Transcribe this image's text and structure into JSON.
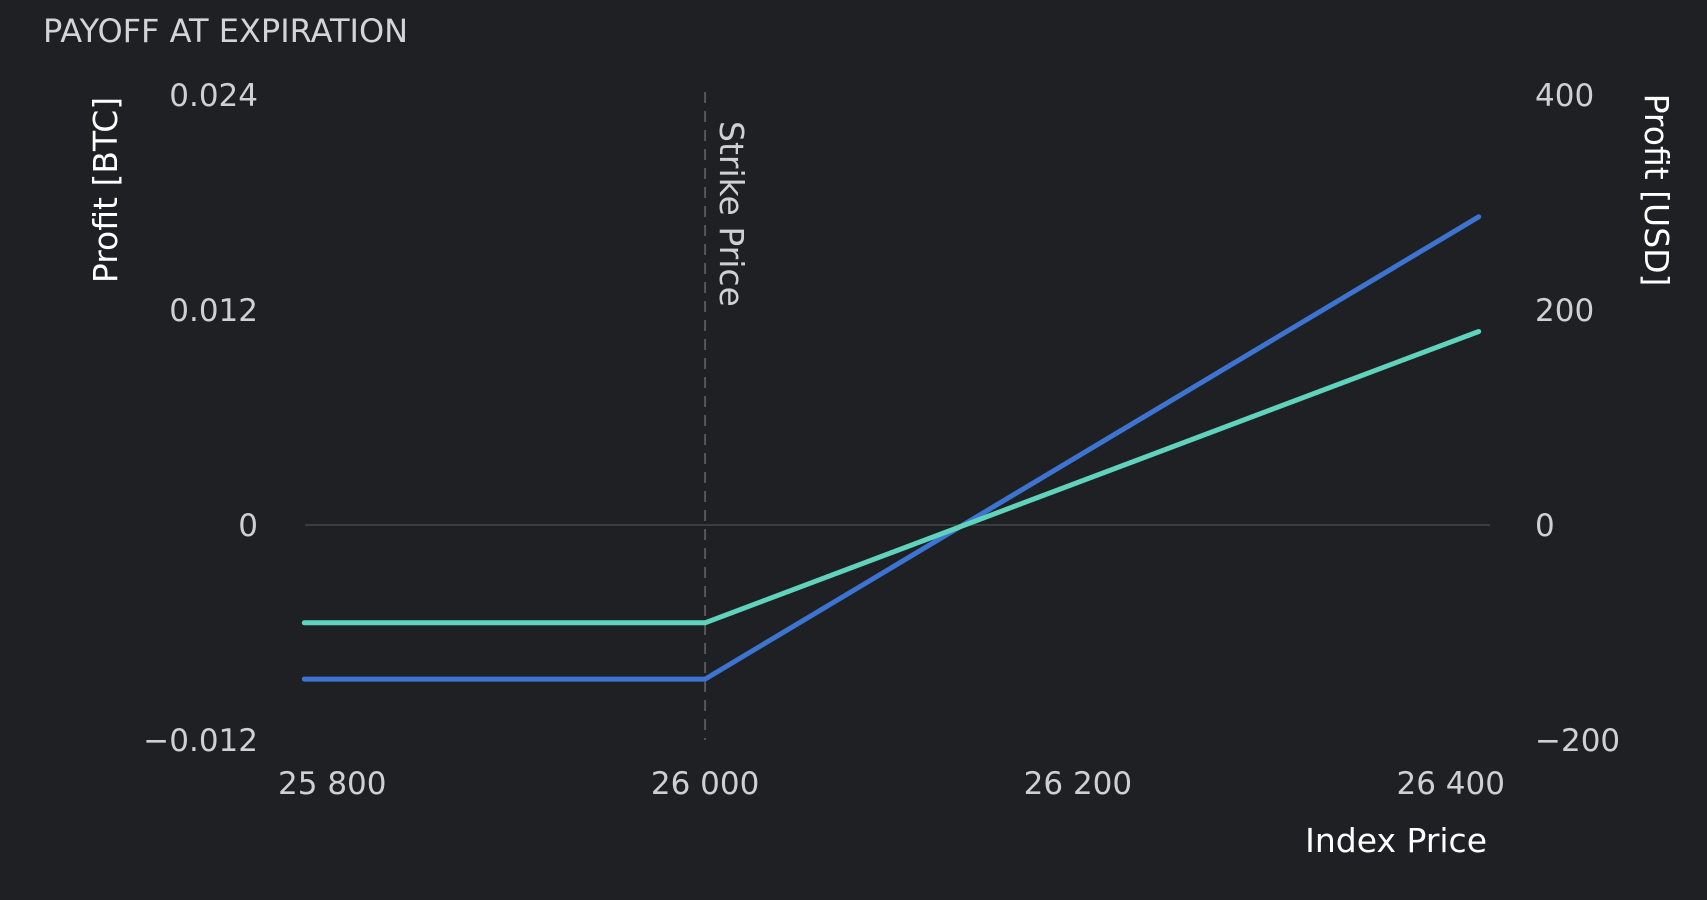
{
  "chart_data": {
    "type": "line",
    "title": "PAYOFF AT EXPIRATION",
    "xlabel": "Index Price",
    "ylabel_left": "Profit [BTC]",
    "ylabel_right": "Profit [USD]",
    "xlim": [
      25780,
      26420
    ],
    "ylim_left": [
      -0.012,
      0.024
    ],
    "ylim_right": [
      -200,
      400
    ],
    "x_ticks": [
      25800,
      26000,
      26200,
      26400
    ],
    "x_tick_labels": [
      "25 800",
      "26 000",
      "26 200",
      "26 400"
    ],
    "y_left_ticks": [
      0.024,
      0.012,
      0,
      -0.012
    ],
    "y_left_tick_labels": [
      "0.024",
      "0.012",
      "0",
      "−0.012"
    ],
    "y_right_ticks": [
      400,
      200,
      0,
      -200
    ],
    "y_right_tick_labels": [
      "400",
      "200",
      "0",
      "−200"
    ],
    "strike": {
      "x": 26000,
      "label": "Strike Price"
    },
    "grid": false,
    "zero_line": true,
    "series": [
      {
        "axis": "left",
        "color": "#3d74d1",
        "x": [
          25785,
          26000,
          26415
        ],
        "y": [
          -0.0086,
          -0.0086,
          0.0172
        ]
      },
      {
        "axis": "right",
        "color": "#5fd3bc",
        "x": [
          25785,
          26000,
          26415
        ],
        "y": [
          -91,
          -91,
          180
        ]
      }
    ],
    "colors": {
      "background": "#1f2023",
      "zero_line": "#3b3c40",
      "strike_line": "#55565a"
    }
  }
}
